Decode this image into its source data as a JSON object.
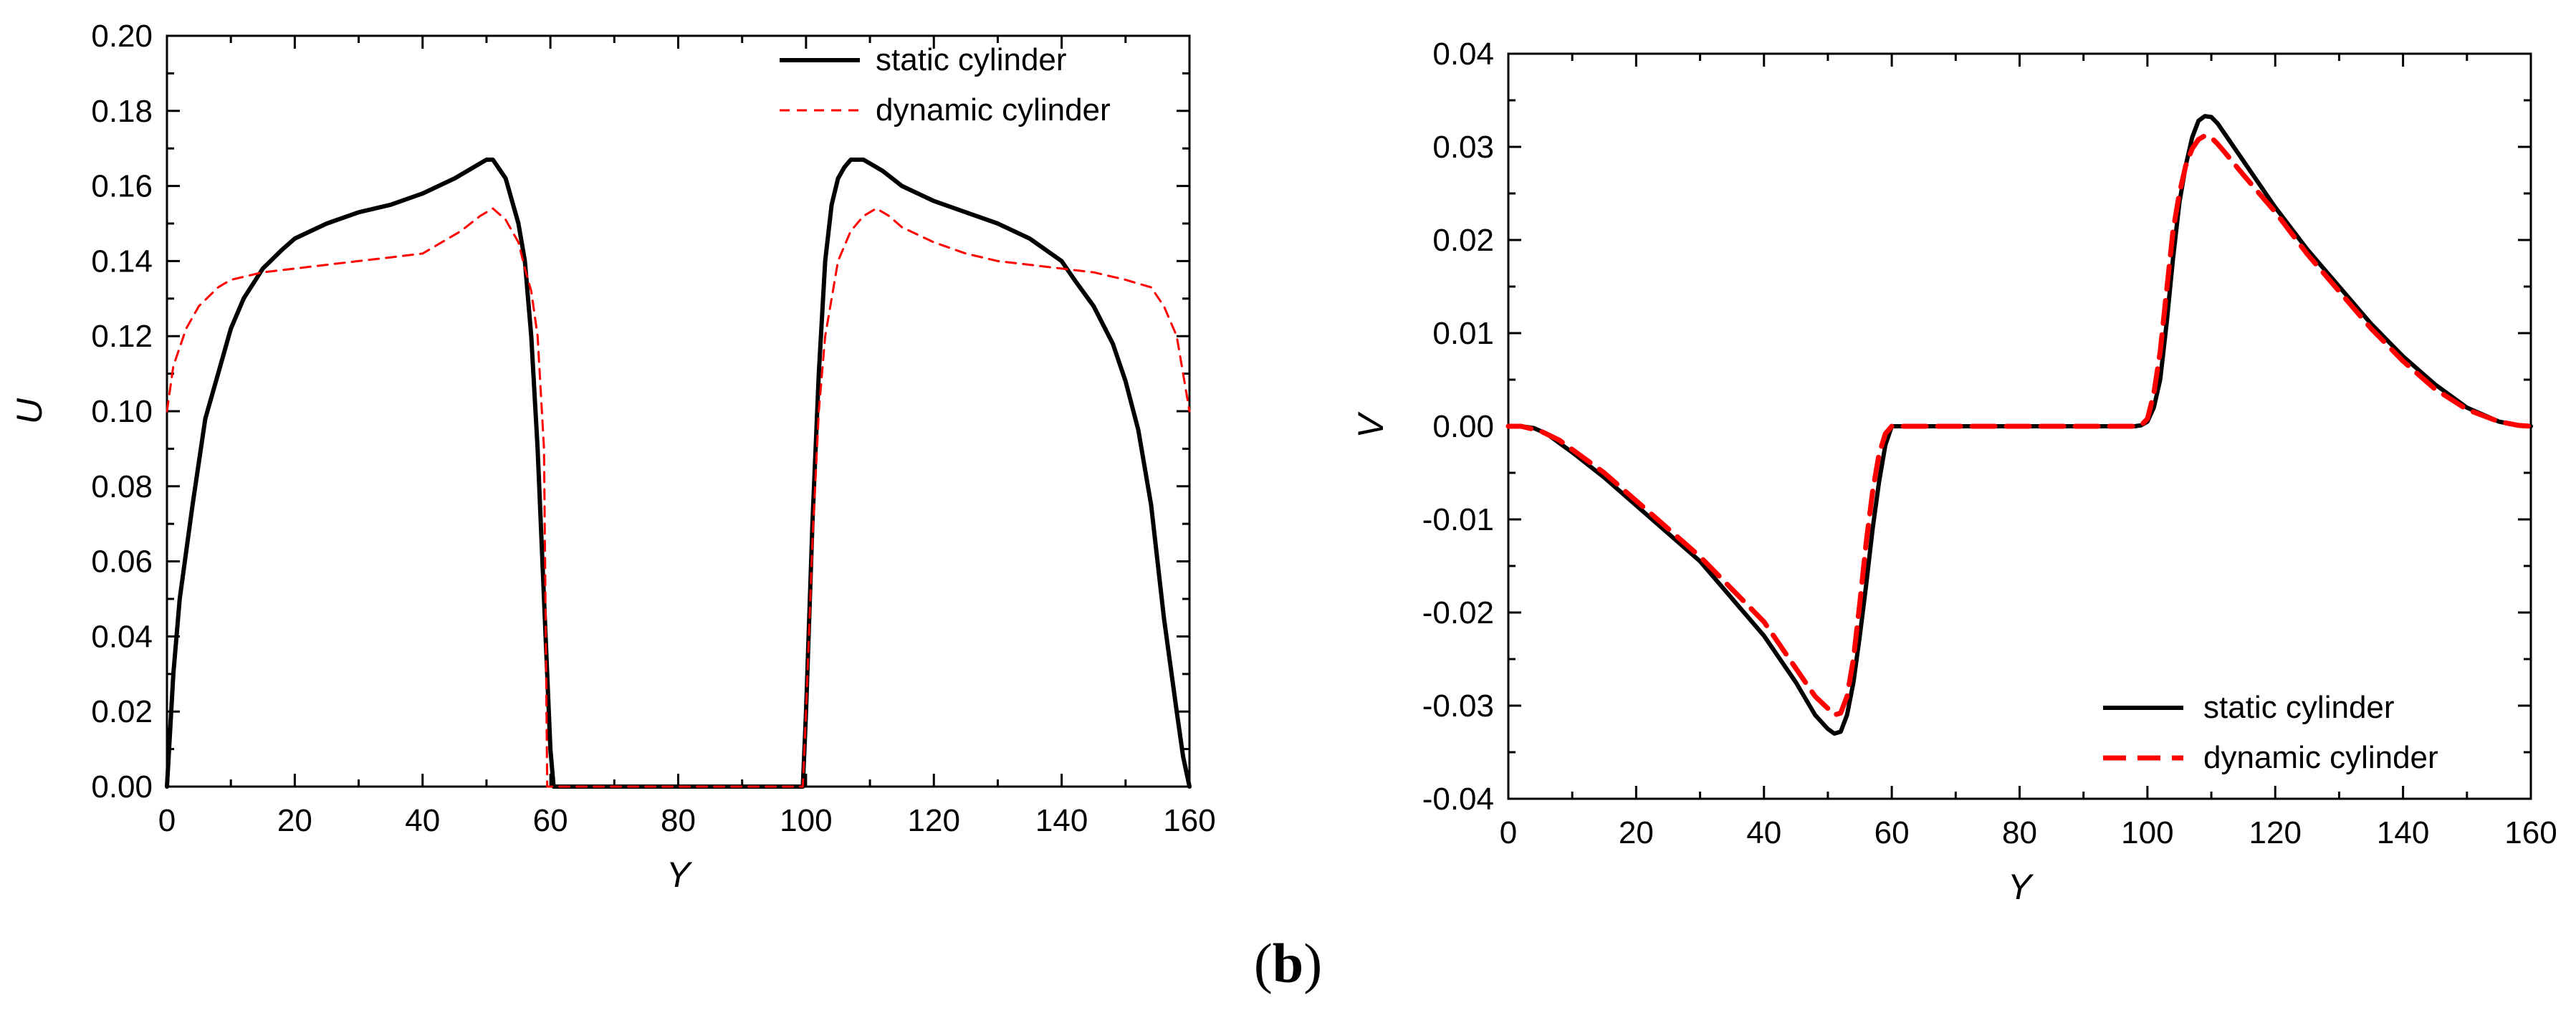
{
  "chart_data": [
    {
      "type": "line",
      "xlabel": "Y",
      "ylabel": "U",
      "xlim": [
        0,
        160
      ],
      "ylim": [
        0,
        0.2
      ],
      "xticks": [
        "0",
        "20",
        "40",
        "60",
        "80",
        "100",
        "120",
        "140",
        "160"
      ],
      "yticks": [
        "0.00",
        "0.02",
        "0.04",
        "0.06",
        "0.08",
        "0.10",
        "0.12",
        "0.14",
        "0.16",
        "0.18",
        "0.20"
      ],
      "legend_position": "top-right",
      "series": [
        {
          "name": "static  cylinder",
          "color": "#000000",
          "style": "solid",
          "x": [
            0,
            1,
            2,
            4,
            6,
            8,
            10,
            12,
            15,
            18,
            20,
            25,
            30,
            35,
            40,
            45,
            48,
            50,
            51,
            53,
            55,
            56,
            57,
            58,
            59,
            60,
            60.5,
            80,
            99.5,
            100,
            101,
            102,
            103,
            104,
            105,
            106,
            107,
            109,
            110,
            112,
            115,
            120,
            125,
            130,
            135,
            140,
            142,
            145,
            148,
            150,
            152,
            154,
            156,
            158,
            159,
            160
          ],
          "y": [
            0,
            0.03,
            0.05,
            0.075,
            0.098,
            0.11,
            0.122,
            0.13,
            0.138,
            0.143,
            0.146,
            0.15,
            0.153,
            0.155,
            0.158,
            0.162,
            0.165,
            0.167,
            0.167,
            0.162,
            0.15,
            0.14,
            0.12,
            0.09,
            0.05,
            0.01,
            0,
            0,
            0,
            0.02,
            0.07,
            0.11,
            0.14,
            0.155,
            0.162,
            0.165,
            0.167,
            0.167,
            0.166,
            0.164,
            0.16,
            0.156,
            0.153,
            0.15,
            0.146,
            0.14,
            0.135,
            0.128,
            0.118,
            0.108,
            0.095,
            0.075,
            0.045,
            0.02,
            0.008,
            0
          ]
        },
        {
          "name": "dynamic cylinder",
          "color": "#ff0000",
          "style": "dashed",
          "x": [
            0,
            1,
            3,
            5,
            8,
            10,
            15,
            20,
            25,
            30,
            35,
            40,
            43,
            46,
            49,
            51,
            53,
            55,
            56,
            57,
            58,
            59,
            59.5,
            99.5,
            100,
            101,
            102,
            103,
            104,
            105,
            107,
            109,
            111,
            113,
            115,
            120,
            125,
            130,
            135,
            140,
            145,
            150,
            154,
            156,
            158,
            159,
            160
          ],
          "y": [
            0.1,
            0.112,
            0.122,
            0.128,
            0.133,
            0.135,
            0.137,
            0.138,
            0.139,
            0.14,
            0.141,
            0.142,
            0.145,
            0.148,
            0.152,
            0.154,
            0.151,
            0.145,
            0.138,
            0.132,
            0.12,
            0.09,
            0,
            0,
            0.02,
            0.065,
            0.1,
            0.12,
            0.13,
            0.14,
            0.148,
            0.152,
            0.154,
            0.152,
            0.149,
            0.145,
            0.142,
            0.14,
            0.139,
            0.138,
            0.137,
            0.135,
            0.133,
            0.128,
            0.12,
            0.11,
            0.1
          ]
        }
      ]
    },
    {
      "type": "line",
      "xlabel": "Y",
      "ylabel": "V",
      "xlim": [
        0,
        160
      ],
      "ylim": [
        -0.04,
        0.04
      ],
      "xticks": [
        "0",
        "20",
        "40",
        "60",
        "80",
        "100",
        "120",
        "140",
        "160"
      ],
      "yticks": [
        "-0.04",
        "-0.03",
        "-0.02",
        "-0.01",
        "0.00",
        "0.01",
        "0.02",
        "0.03",
        "0.04"
      ],
      "legend_position": "bottom-right",
      "series": [
        {
          "name": "static cylinder",
          "color": "#000000",
          "style": "solid",
          "x": [
            0,
            2,
            4,
            6,
            8,
            10,
            15,
            20,
            25,
            30,
            35,
            40,
            45,
            48,
            50,
            51,
            52,
            53,
            54,
            55,
            56,
            57,
            58,
            59,
            60,
            61,
            70,
            80,
            90,
            98,
            99,
            100,
            101,
            102,
            103,
            104,
            105,
            106,
            107,
            108,
            109,
            110,
            111,
            112,
            115,
            120,
            125,
            130,
            135,
            140,
            145,
            150,
            155,
            158,
            160
          ],
          "y": [
            0,
            0,
            -0.0002,
            -0.0008,
            -0.0018,
            -0.0028,
            -0.0055,
            -0.0085,
            -0.0115,
            -0.0145,
            -0.0185,
            -0.0225,
            -0.0275,
            -0.031,
            -0.0325,
            -0.033,
            -0.0328,
            -0.031,
            -0.0275,
            -0.0225,
            -0.017,
            -0.011,
            -0.006,
            -0.002,
            0,
            0,
            0,
            0,
            0,
            0,
            0.0001,
            0.0005,
            0.002,
            0.005,
            0.011,
            0.018,
            0.024,
            0.028,
            0.031,
            0.0328,
            0.0333,
            0.0332,
            0.0325,
            0.0315,
            0.0285,
            0.0235,
            0.019,
            0.015,
            0.011,
            0.0075,
            0.0045,
            0.002,
            0.0005,
            0.0001,
            0
          ]
        },
        {
          "name": "dynamic cylinder",
          "color": "#ff0000",
          "style": "dashed",
          "x": [
            0,
            2,
            5,
            8,
            10,
            15,
            20,
            25,
            30,
            35,
            40,
            45,
            48,
            50,
            51,
            52,
            53,
            54,
            55,
            56,
            57,
            58,
            59,
            60,
            61,
            70,
            80,
            90,
            98,
            99,
            100,
            101,
            102,
            103,
            104,
            105,
            106,
            107,
            108,
            109,
            110,
            111,
            112,
            115,
            120,
            125,
            130,
            135,
            140,
            145,
            150,
            155,
            158,
            160
          ],
          "y": [
            0,
            0,
            -0.0005,
            -0.0015,
            -0.0025,
            -0.005,
            -0.008,
            -0.011,
            -0.014,
            -0.0175,
            -0.021,
            -0.026,
            -0.029,
            -0.0303,
            -0.031,
            -0.0308,
            -0.029,
            -0.025,
            -0.019,
            -0.0125,
            -0.007,
            -0.003,
            -0.0008,
            0,
            0,
            0,
            0,
            0,
            0,
            0.0001,
            0.0008,
            0.0035,
            0.008,
            0.0145,
            0.021,
            0.025,
            0.028,
            0.0298,
            0.0308,
            0.0312,
            0.031,
            0.0303,
            0.0295,
            0.027,
            0.023,
            0.0185,
            0.0145,
            0.0105,
            0.007,
            0.004,
            0.0018,
            0.0005,
            0.0001,
            0
          ]
        }
      ]
    }
  ],
  "caption": {
    "open": "(",
    "letter": "b",
    "close": ")"
  }
}
